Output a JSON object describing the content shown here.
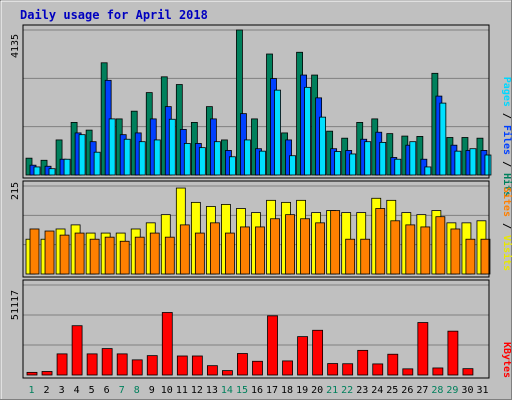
{
  "chart_data": [
    {
      "type": "bar",
      "title": "Daily usage for April 2018",
      "categories": [
        "1",
        "2",
        "3",
        "4",
        "5",
        "6",
        "7",
        "8",
        "9",
        "10",
        "11",
        "12",
        "13",
        "14",
        "15",
        "16",
        "17",
        "18",
        "19",
        "20",
        "21",
        "22",
        "23",
        "24",
        "25",
        "26",
        "27",
        "28",
        "29",
        "30",
        "31"
      ],
      "weekend_days": [
        "1",
        "7",
        "8",
        "14",
        "15",
        "21",
        "22",
        "28",
        "29"
      ],
      "ymax_label": "4135",
      "ylim": [
        0,
        4135
      ],
      "grid": true,
      "right_labels": [
        "Pages",
        "Files",
        "Hits"
      ],
      "series": [
        {
          "name": "Hits",
          "color": "#00805c",
          "values": [
            480,
            420,
            1000,
            1500,
            1280,
            3200,
            1600,
            1820,
            2350,
            2800,
            2580,
            1500,
            1950,
            1000,
            4135,
            1600,
            3450,
            1200,
            3500,
            2850,
            1250,
            1050,
            1500,
            1600,
            1180,
            1110,
            1100,
            2900,
            1070,
            1070,
            1050
          ]
        },
        {
          "name": "Files",
          "color": "#0040ff",
          "values": [
            280,
            250,
            450,
            1200,
            950,
            2700,
            1150,
            1200,
            1600,
            1950,
            1300,
            900,
            1600,
            700,
            1750,
            750,
            2750,
            1000,
            2850,
            2200,
            750,
            700,
            1020,
            1220,
            500,
            850,
            450,
            2250,
            850,
            700,
            700
          ]
        },
        {
          "name": "Pages",
          "color": "#00e0ff",
          "values": [
            230,
            180,
            450,
            1150,
            650,
            1600,
            1020,
            950,
            1000,
            1590,
            900,
            780,
            950,
            520,
            1000,
            680,
            2420,
            550,
            2500,
            1650,
            670,
            600,
            950,
            930,
            450,
            950,
            230,
            2050,
            680,
            750,
            570
          ]
        }
      ]
    },
    {
      "type": "bar",
      "ymax_label": "215",
      "ylim": [
        0,
        215
      ],
      "grid": true,
      "right_labels": [
        "Sites",
        "Visits"
      ],
      "series": [
        {
          "name": "Visits",
          "color": "#ffff00",
          "values": [
            85,
            85,
            110,
            120,
            100,
            100,
            100,
            110,
            125,
            145,
            210,
            175,
            165,
            170,
            160,
            150,
            180,
            175,
            180,
            150,
            155,
            150,
            150,
            185,
            180,
            150,
            145,
            155,
            125,
            125,
            130
          ]
        },
        {
          "name": "Sites",
          "color": "#ff8000",
          "values": [
            110,
            105,
            95,
            100,
            85,
            90,
            80,
            90,
            100,
            90,
            120,
            100,
            125,
            100,
            115,
            115,
            135,
            145,
            135,
            125,
            155,
            85,
            85,
            160,
            130,
            120,
            115,
            140,
            110,
            85,
            85
          ]
        }
      ]
    },
    {
      "type": "bar",
      "ymax_label": "51117",
      "ylim": [
        0,
        51117
      ],
      "grid": true,
      "right_labels": [
        "KBytes"
      ],
      "series": [
        {
          "name": "KBytes",
          "color": "#ff0000",
          "values": [
            1500,
            2000,
            12000,
            28000,
            12000,
            15000,
            12000,
            8600,
            11000,
            35500,
            10800,
            10800,
            5300,
            2500,
            12200,
            7800,
            33600,
            8000,
            21800,
            25400,
            6500,
            6400,
            14000,
            6300,
            11800,
            3500,
            29800,
            4000,
            24900,
            3600,
            0
          ]
        }
      ]
    }
  ]
}
